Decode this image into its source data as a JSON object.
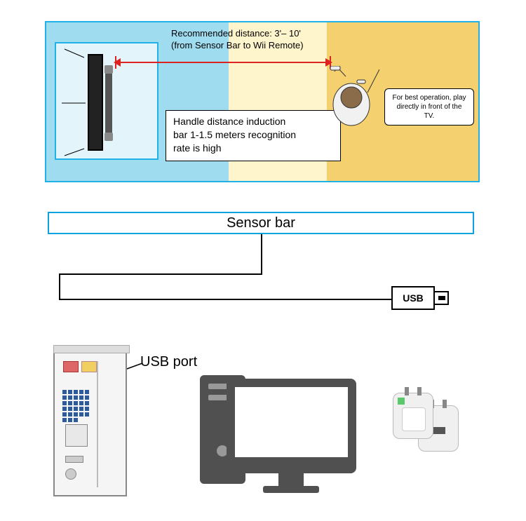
{
  "colors": {
    "panelBorder": "#20b2e6",
    "bgLeft": "#9fdcf0",
    "bgMid": "#fff5cc",
    "bgRight": "#f4d06f",
    "tvFill": "#e4f4fb",
    "arrow": "#d22",
    "sensorBorder": "#0aa3de",
    "pcColor": "#505050",
    "ledGreen": "#59c96b"
  },
  "topPanel": {
    "recomLine1": "Recommended distance: 3'– 10'",
    "recomLine2": "(from Sensor Bar to Wii Remote)",
    "calloutText": "For best operation, play directly in front of the TV.",
    "infoBoxLine1": "Handle distance induction",
    "infoBoxLine2": "bar 1-1.5 meters recognition",
    "infoBoxLine3": "rate is high"
  },
  "middle": {
    "sensorBarLabel": "Sensor bar",
    "usbLabel": "USB"
  },
  "bottom": {
    "usbPortLabel": "USB port"
  }
}
